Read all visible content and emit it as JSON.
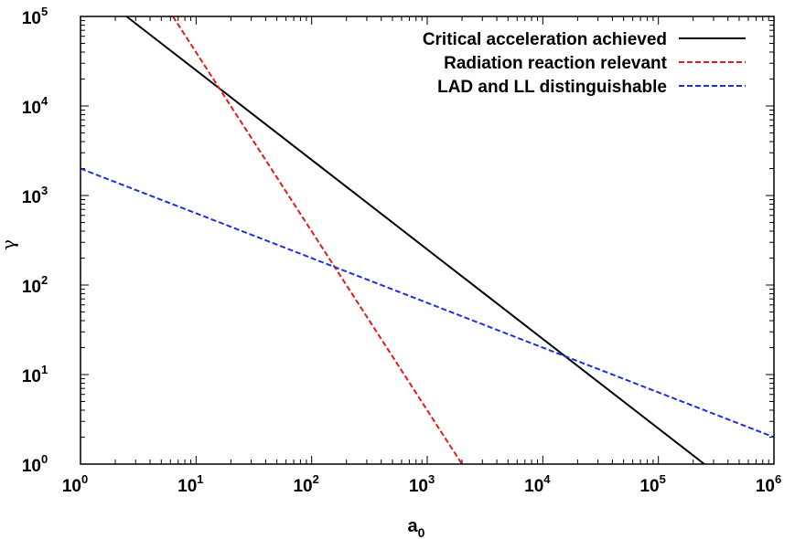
{
  "chart_data": {
    "type": "line",
    "title": "",
    "xlabel": "a",
    "xlabel_sub": "0",
    "ylabel": "γ",
    "xscale": "log",
    "yscale": "log",
    "xlim": [
      1,
      1000000
    ],
    "ylim": [
      1,
      100000
    ],
    "x_ticks": [
      {
        "value": 1,
        "base": "10",
        "exp": "0"
      },
      {
        "value": 10,
        "base": "10",
        "exp": "1"
      },
      {
        "value": 100,
        "base": "10",
        "exp": "2"
      },
      {
        "value": 1000,
        "base": "10",
        "exp": "3"
      },
      {
        "value": 10000,
        "base": "10",
        "exp": "4"
      },
      {
        "value": 100000,
        "base": "10",
        "exp": "5"
      },
      {
        "value": 1000000,
        "base": "10",
        "exp": "6"
      }
    ],
    "y_ticks": [
      {
        "value": 1,
        "base": "10",
        "exp": "0"
      },
      {
        "value": 10,
        "base": "10",
        "exp": "1"
      },
      {
        "value": 100,
        "base": "10",
        "exp": "2"
      },
      {
        "value": 1000,
        "base": "10",
        "exp": "3"
      },
      {
        "value": 10000,
        "base": "10",
        "exp": "4"
      },
      {
        "value": 100000,
        "base": "10",
        "exp": "5"
      }
    ],
    "grid": false,
    "legend_position": "top-right",
    "series": [
      {
        "name": "Critical acceleration achieved",
        "color": "#000000",
        "dash": "solid",
        "x": [
          2.5,
          250000
        ],
        "y": [
          100000,
          1
        ]
      },
      {
        "name": "Radiation reaction relevant",
        "color": "#e41a1c",
        "dash": "dashed",
        "x": [
          6.3,
          2000
        ],
        "y": [
          100000,
          1
        ]
      },
      {
        "name": "LAD and LL distinguishable",
        "color": "#1f2fe0",
        "dash": "dashed",
        "x": [
          1,
          1000000
        ],
        "y": [
          2000,
          2
        ]
      }
    ]
  }
}
